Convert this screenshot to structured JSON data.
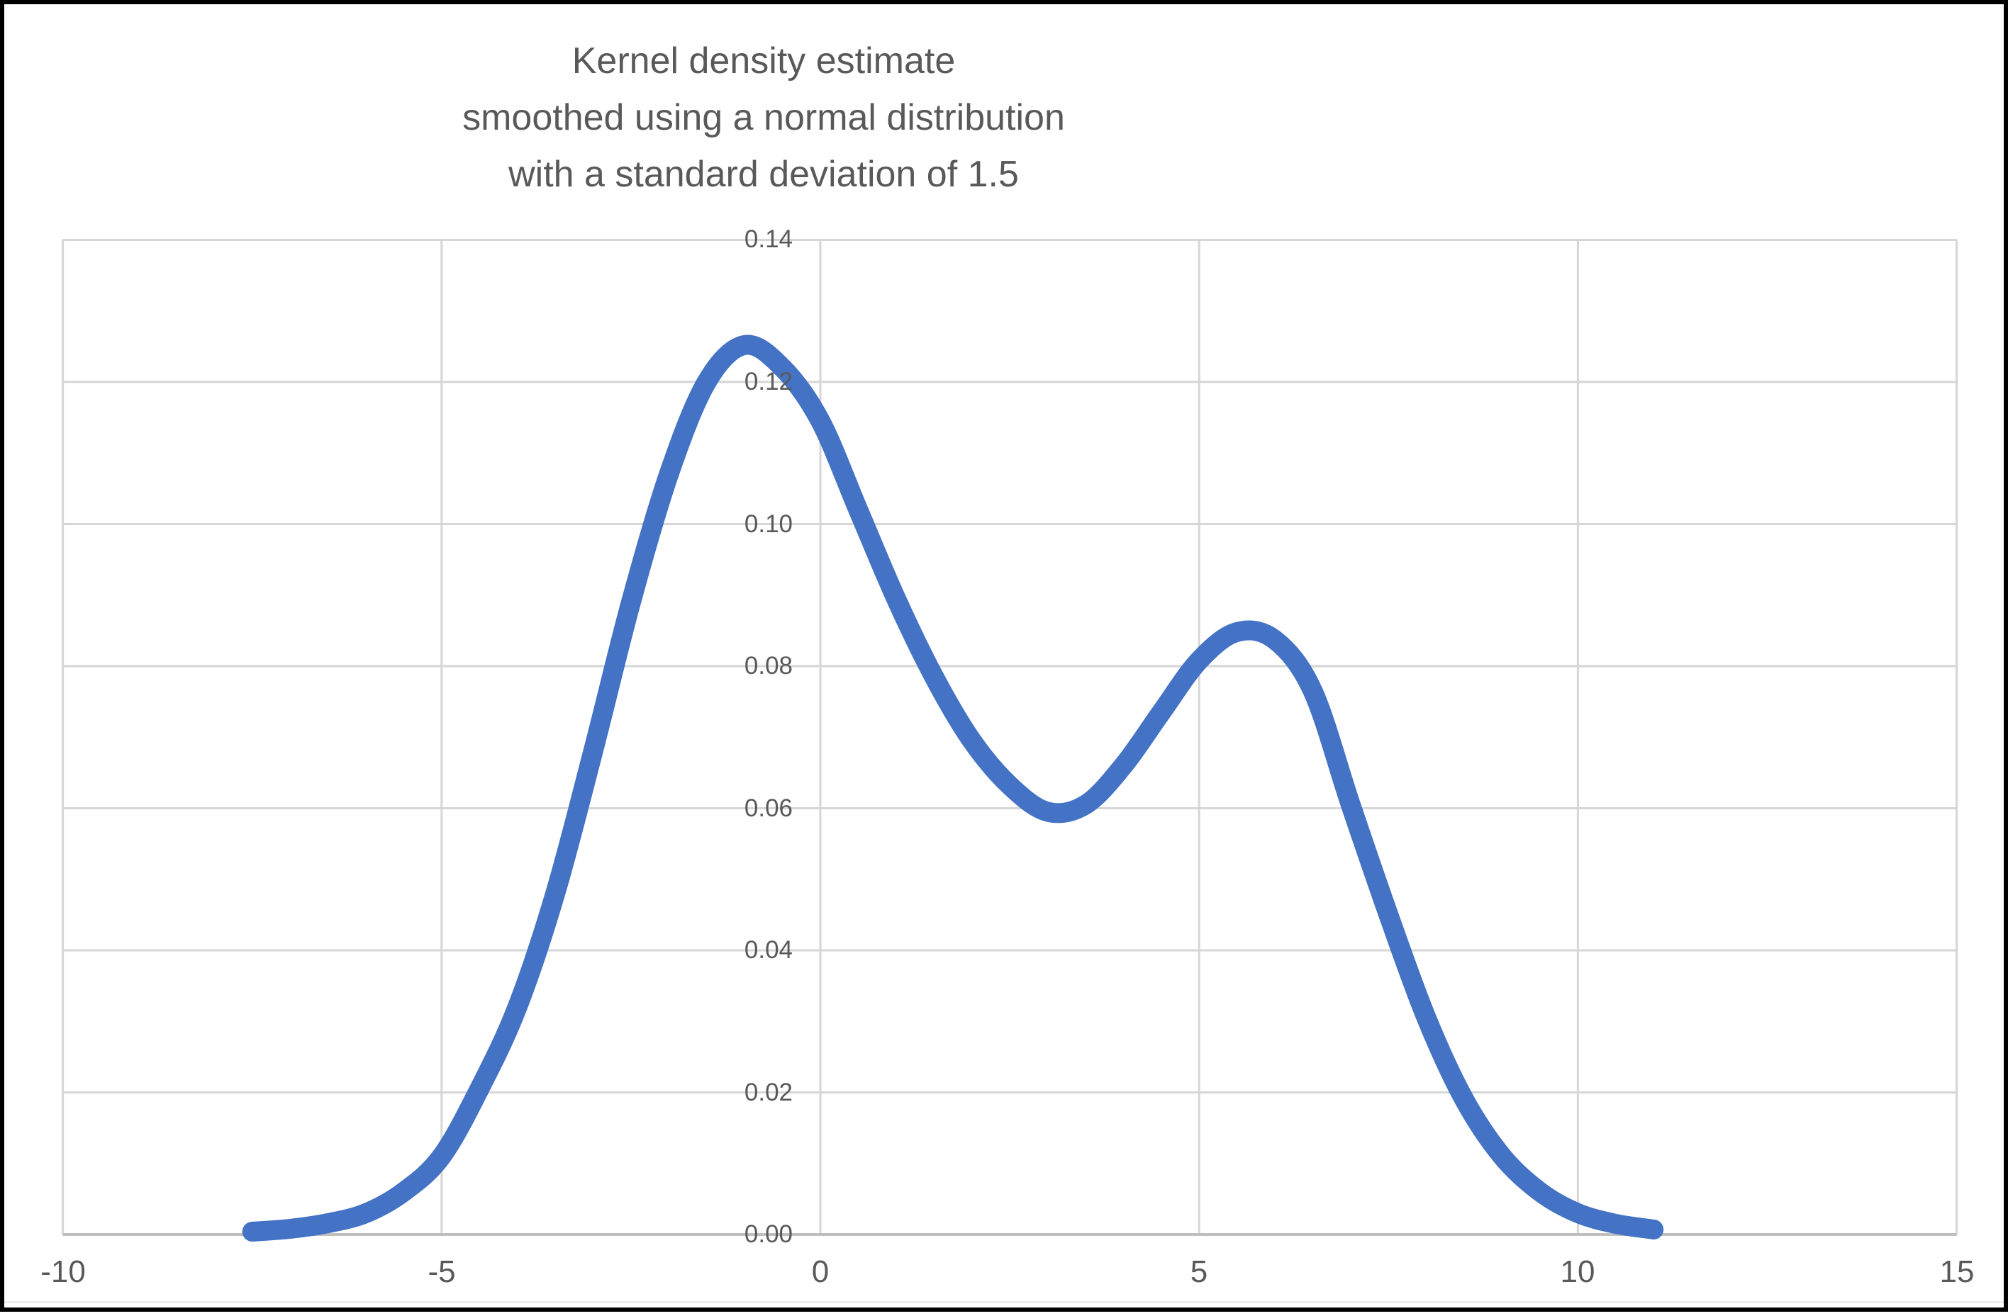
{
  "chart": {
    "title_lines": "Kernel density estimate\nsmoothed using a normal distribution\nwith a standard deviation of 1.5"
  },
  "colors": {
    "curve": "#4472C4",
    "gridline": "#D6D6D6",
    "axis_line": "#BFBFBF",
    "text": "#595959",
    "frame": "#000000",
    "background": "#FFFFFF"
  },
  "chart_data": {
    "type": "line",
    "title": "Kernel density estimate smoothed using a normal distribution with a standard deviation of 1.5",
    "xlabel": "",
    "ylabel": "",
    "xlim": [
      -10,
      15
    ],
    "ylim": [
      0,
      0.14
    ],
    "x_ticks": [
      -10,
      -5,
      0,
      5,
      10,
      15
    ],
    "y_ticks": [
      0,
      0.02,
      0.04,
      0.06,
      0.08,
      0.1,
      0.12,
      0.14
    ],
    "y_tick_decimals": 2,
    "grid": true,
    "legend": "none",
    "series": [
      {
        "name": "Kernel density estimate",
        "color": "#4472C4",
        "points": [
          [
            -7.5,
            0.0004
          ],
          [
            -7.0,
            0.0008
          ],
          [
            -6.5,
            0.0016
          ],
          [
            -6.0,
            0.003
          ],
          [
            -5.5,
            0.006
          ],
          [
            -5.0,
            0.011
          ],
          [
            -4.5,
            0.0205
          ],
          [
            -4.0,
            0.032
          ],
          [
            -3.5,
            0.048
          ],
          [
            -3.0,
            0.068
          ],
          [
            -2.5,
            0.089
          ],
          [
            -2.0,
            0.107
          ],
          [
            -1.5,
            0.12
          ],
          [
            -1.0,
            0.1252
          ],
          [
            -0.5,
            0.122
          ],
          [
            0.0,
            0.1145
          ],
          [
            0.5,
            0.102
          ],
          [
            1.0,
            0.0895
          ],
          [
            1.5,
            0.0785
          ],
          [
            2.0,
            0.0695
          ],
          [
            2.5,
            0.0632
          ],
          [
            3.0,
            0.0595
          ],
          [
            3.5,
            0.0605
          ],
          [
            4.0,
            0.066
          ],
          [
            4.5,
            0.0735
          ],
          [
            5.0,
            0.0808
          ],
          [
            5.5,
            0.0848
          ],
          [
            6.0,
            0.0837
          ],
          [
            6.5,
            0.0765
          ],
          [
            7.0,
            0.0605
          ],
          [
            7.5,
            0.045
          ],
          [
            8.0,
            0.0305
          ],
          [
            8.5,
            0.019
          ],
          [
            9.0,
            0.011
          ],
          [
            9.5,
            0.006
          ],
          [
            10.0,
            0.003
          ],
          [
            10.5,
            0.0015
          ],
          [
            11.0,
            0.0007
          ]
        ]
      }
    ]
  }
}
